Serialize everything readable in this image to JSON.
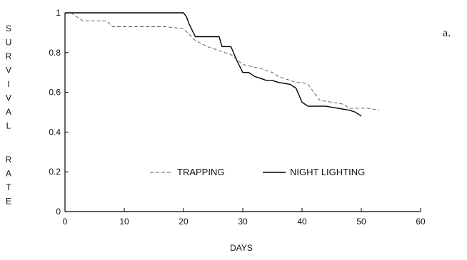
{
  "chart_data": {
    "type": "line",
    "panel_label": "a.",
    "xlabel": "DAYS",
    "ylabel": "SURVIVAL RATE",
    "xlim": [
      0,
      60
    ],
    "ylim": [
      0,
      1
    ],
    "x_ticks": [
      0,
      10,
      20,
      30,
      40,
      50,
      60
    ],
    "y_ticks": [
      0,
      0.2,
      0.4,
      0.6,
      0.8,
      1
    ],
    "x_tick_labels": [
      "0",
      "10",
      "20",
      "30",
      "40",
      "50",
      "60"
    ],
    "y_tick_labels": [
      "0",
      "0.2",
      "0.4",
      "0.6",
      "0.8",
      "1"
    ],
    "grid": false,
    "legend_position": "center",
    "series": [
      {
        "name": "TRAPPING",
        "style": "dashed",
        "color": "#555555",
        "points": [
          [
            0,
            1.0
          ],
          [
            1,
            1.0
          ],
          [
            3,
            0.96
          ],
          [
            7,
            0.96
          ],
          [
            8,
            0.93
          ],
          [
            11,
            0.93
          ],
          [
            17,
            0.93
          ],
          [
            20,
            0.92
          ],
          [
            22,
            0.86
          ],
          [
            24,
            0.83
          ],
          [
            26,
            0.81
          ],
          [
            28,
            0.79
          ],
          [
            30,
            0.74
          ],
          [
            33,
            0.72
          ],
          [
            35,
            0.7
          ],
          [
            36,
            0.68
          ],
          [
            38,
            0.66
          ],
          [
            39,
            0.65
          ],
          [
            40,
            0.65
          ],
          [
            41,
            0.64
          ],
          [
            43,
            0.56
          ],
          [
            45,
            0.55
          ],
          [
            47,
            0.54
          ],
          [
            48,
            0.52
          ],
          [
            51,
            0.52
          ],
          [
            53,
            0.51
          ]
        ]
      },
      {
        "name": "NIGHT LIGHTING",
        "style": "solid",
        "color": "#000000",
        "points": [
          [
            0,
            1.0
          ],
          [
            10,
            1.0
          ],
          [
            20,
            1.0
          ],
          [
            20.5,
            0.98
          ],
          [
            21,
            0.94
          ],
          [
            22,
            0.88
          ],
          [
            26,
            0.88
          ],
          [
            26.5,
            0.83
          ],
          [
            28,
            0.83
          ],
          [
            29,
            0.76
          ],
          [
            30,
            0.7
          ],
          [
            31,
            0.7
          ],
          [
            32,
            0.68
          ],
          [
            33,
            0.67
          ],
          [
            34,
            0.66
          ],
          [
            35,
            0.66
          ],
          [
            36,
            0.65
          ],
          [
            38,
            0.64
          ],
          [
            39,
            0.62
          ],
          [
            40,
            0.55
          ],
          [
            41,
            0.53
          ],
          [
            42,
            0.53
          ],
          [
            44,
            0.53
          ],
          [
            46,
            0.52
          ],
          [
            48,
            0.51
          ],
          [
            49,
            0.5
          ],
          [
            50,
            0.48
          ]
        ]
      }
    ]
  }
}
